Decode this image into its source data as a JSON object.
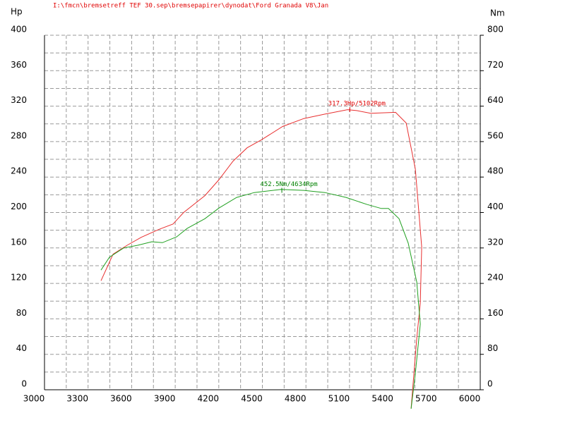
{
  "chart_data": {
    "type": "line",
    "title": "I:\\fmcn\\bremsetreff TEF 30.sep\\bremsepapirer\\dynodat\\Ford Granada V8\\Jan",
    "y_label": "Hp",
    "y2_label": "Nm",
    "xlim": [
      3000,
      6000
    ],
    "xticks": [
      3000,
      3300,
      3600,
      3900,
      4200,
      4500,
      4800,
      5100,
      5400,
      5700,
      6000
    ],
    "ylim": [
      0,
      400
    ],
    "yticks": [
      0,
      40,
      80,
      120,
      160,
      200,
      240,
      280,
      320,
      360,
      400
    ],
    "y2lim": [
      0,
      800
    ],
    "y2ticks": [
      0,
      80,
      160,
      240,
      320,
      400,
      480,
      560,
      640,
      720,
      800
    ],
    "grid": true,
    "series": [
      {
        "color": "#e83030",
        "axis": "y",
        "x": [
          3389,
          3472,
          3569,
          3666,
          3788,
          3885,
          3958,
          4104,
          4201,
          4298,
          4395,
          4493,
          4639,
          4785,
          4931,
          5086,
          5149,
          5246,
          5417,
          5490,
          5553,
          5597,
          5587,
          5563,
          5524
        ],
        "values": [
          123,
          153,
          163,
          172,
          181,
          187,
          200,
          219,
          237,
          258,
          273,
          282,
          297,
          306,
          311,
          316,
          315,
          312,
          313,
          301,
          249,
          161,
          98,
          58,
          -21
        ]
      },
      {
        "color": "#20a020",
        "axis": "y2",
        "x": [
          3389,
          3447,
          3545,
          3642,
          3739,
          3812,
          3909,
          3982,
          4104,
          4201,
          4323,
          4444,
          4629,
          4785,
          4931,
          5076,
          5222,
          5319,
          5368,
          5441,
          5504,
          5563,
          5587,
          5553,
          5524
        ],
        "values": [
          270,
          299,
          320,
          326,
          334,
          332,
          345,
          364,
          386,
          410,
          434,
          445,
          452,
          450,
          445,
          434,
          418,
          409,
          409,
          386,
          331,
          243,
          148,
          37,
          -43
        ]
      }
    ],
    "annotations": [
      {
        "text": "317.3Hp/5102Rpm",
        "x": 5102,
        "y": 317.3,
        "axis": "y",
        "color": "#e00000"
      },
      {
        "text": "452.5Nm/4634Rpm",
        "x": 4634,
        "y": 452.5,
        "axis": "y2",
        "color": "#008000"
      }
    ]
  }
}
